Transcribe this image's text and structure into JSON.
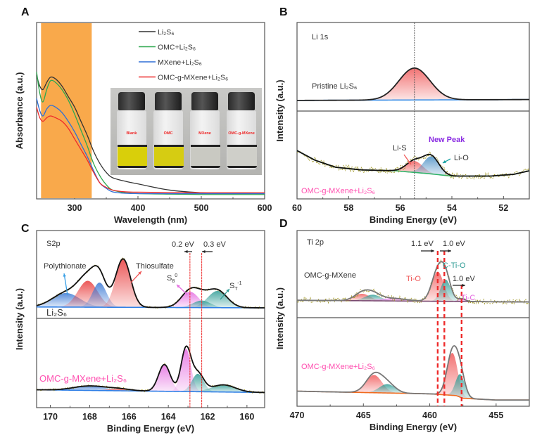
{
  "chart_data": [
    {
      "panel": "A",
      "type": "line",
      "xlabel": "Wavelength (nm)",
      "ylabel": "Absorbance (a.u.)",
      "xlim": [
        240,
        600
      ],
      "ylim": [
        0,
        1
      ],
      "xticks": [
        300,
        400,
        500,
        600
      ],
      "highlight_band": {
        "from": 247,
        "to": 327,
        "color": "#f9a94b"
      },
      "series": [
        {
          "name": "Li₂S₆",
          "color": "#333333",
          "x": [
            240,
            245,
            250,
            256,
            262,
            270,
            280,
            290,
            300,
            310,
            320,
            330,
            340,
            350,
            360,
            380,
            400,
            450,
            500,
            550,
            600
          ],
          "y": [
            0.7,
            0.64,
            0.62,
            0.66,
            0.69,
            0.68,
            0.64,
            0.58,
            0.52,
            0.44,
            0.36,
            0.27,
            0.2,
            0.15,
            0.12,
            0.1,
            0.085,
            0.05,
            0.035,
            0.032,
            0.03
          ]
        },
        {
          "name": "OMC+Li₂S₆",
          "color": "#2ea84f",
          "x": [
            240,
            245,
            250,
            256,
            262,
            270,
            280,
            290,
            300,
            310,
            320,
            330,
            340,
            350,
            360,
            380,
            400,
            450,
            500,
            550,
            600
          ],
          "y": [
            0.72,
            0.6,
            0.55,
            0.62,
            0.67,
            0.66,
            0.62,
            0.56,
            0.48,
            0.39,
            0.3,
            0.2,
            0.13,
            0.08,
            0.05,
            0.035,
            0.03,
            0.027,
            0.025,
            0.025,
            0.025
          ]
        },
        {
          "name": "MXene+Li₂S₆",
          "color": "#2f6fd6",
          "x": [
            240,
            245,
            250,
            256,
            262,
            270,
            280,
            290,
            300,
            310,
            320,
            330,
            340,
            350,
            360,
            380,
            400,
            450,
            500,
            550,
            600
          ],
          "y": [
            0.57,
            0.5,
            0.47,
            0.51,
            0.53,
            0.52,
            0.49,
            0.44,
            0.38,
            0.31,
            0.24,
            0.16,
            0.09,
            0.06,
            0.04,
            0.032,
            0.03,
            0.03,
            0.03,
            0.03,
            0.03
          ]
        },
        {
          "name": "OMC-g-MXene+Li₂S₆",
          "color": "#ee2b2b",
          "x": [
            240,
            245,
            250,
            256,
            262,
            270,
            280,
            290,
            300,
            310,
            320,
            330,
            340,
            350,
            360,
            380,
            400,
            450,
            500,
            550,
            600
          ],
          "y": [
            0.52,
            0.46,
            0.44,
            0.46,
            0.47,
            0.46,
            0.44,
            0.4,
            0.34,
            0.28,
            0.22,
            0.15,
            0.09,
            0.065,
            0.05,
            0.04,
            0.038,
            0.036,
            0.035,
            0.035,
            0.035
          ]
        }
      ],
      "legend": "top-right",
      "inset_photo": {
        "vials": [
          {
            "label": "Blank",
            "liquid_color": "#d9cf0a"
          },
          {
            "label": "OMC",
            "liquid_color": "#d6cc12"
          },
          {
            "label": "MXene",
            "liquid_color": "#c9c9c2"
          },
          {
            "label": "OMC-g-MXene",
            "liquid_color": "#cfcfc9"
          }
        ]
      }
    },
    {
      "panel": "B",
      "type": "line",
      "xlabel": "Binding Energy (eV)",
      "ylabel": "Intensity (a.u.)",
      "xlim": [
        60,
        51
      ],
      "xticks": [
        60,
        58,
        56,
        54,
        52
      ],
      "reference_line": 55.45,
      "subplots": [
        {
          "label": "Pristine Li₂S₆",
          "background": [
            [
              60,
              0.12
            ],
            [
              51,
              0.13
            ]
          ],
          "raw_data": false,
          "envelope_color": "#222222",
          "peaks": [
            {
              "center": 55.45,
              "amplitude": 0.36,
              "sigma": 0.6,
              "color": "#f05a5a"
            }
          ]
        },
        {
          "label": "OMC-g-MXene+Li₂S₆",
          "background": [
            [
              60,
              0.55
            ],
            [
              59.3,
              0.44
            ],
            [
              58.5,
              0.36
            ],
            [
              57.5,
              0.33
            ],
            [
              56.2,
              0.32
            ],
            [
              55,
              0.29
            ],
            [
              54,
              0.26
            ],
            [
              52.5,
              0.26
            ],
            [
              51.6,
              0.28
            ],
            [
              51,
              0.32
            ]
          ],
          "raw_data": true,
          "envelope_color": "#111111",
          "peaks": [
            {
              "center": 55.45,
              "amplitude": 0.13,
              "sigma": 0.32,
              "color": "#f05a5a"
            },
            {
              "center": 54.8,
              "amplitude": 0.2,
              "sigma": 0.3,
              "color": "#4a8fc4"
            }
          ]
        }
      ],
      "annotations": {
        "core_level": "Li 1s",
        "li_s": "Li-S",
        "new_peak": "New Peak",
        "li_o": "Li-O"
      }
    },
    {
      "panel": "C",
      "type": "line",
      "xlabel": "Binding Energy (eV)",
      "ylabel": "Intensity (a.u.)",
      "xlim": [
        170.7,
        159.1
      ],
      "xticks": [
        170,
        168,
        166,
        164,
        162,
        160
      ],
      "reference_lines": [
        162.9,
        162.3
      ],
      "subplots": [
        {
          "label": "Li₂S₆",
          "background": [
            [
              170.7,
              0.13
            ],
            [
              159.1,
              0.12
            ]
          ],
          "raw_data": true,
          "envelope_color": "#111111",
          "peaks": [
            {
              "center": 169.2,
              "amplitude": 0.16,
              "sigma": 0.7,
              "color": "#3a78d4"
            },
            {
              "center": 168.1,
              "amplitude": 0.3,
              "sigma": 0.5,
              "color": "#e83b3b"
            },
            {
              "center": 167.5,
              "amplitude": 0.28,
              "sigma": 0.35,
              "color": "#3a78d4"
            },
            {
              "center": 166.3,
              "amplitude": 0.55,
              "sigma": 0.38,
              "color": "#e83b3b"
            },
            {
              "center": 162.9,
              "amplitude": 0.18,
              "sigma": 0.45,
              "color": "#e46be0"
            },
            {
              "center": 162.3,
              "amplitude": 0.08,
              "sigma": 0.45,
              "color": "#2f9c95"
            },
            {
              "center": 161.5,
              "amplitude": 0.19,
              "sigma": 0.5,
              "color": "#2f9c95"
            }
          ]
        },
        {
          "label": "OMC-g-MXene+Li₂S₆",
          "background": [
            [
              170.7,
              0.2
            ],
            [
              159.1,
              0.17
            ]
          ],
          "raw_data": true,
          "envelope_color": "#111111",
          "peaks": [
            {
              "center": 168.0,
              "amplitude": 0.05,
              "sigma": 0.8,
              "color": "#3a78d4"
            },
            {
              "center": 166.5,
              "amplitude": 0.02,
              "sigma": 0.6,
              "color": "#e83b3b"
            },
            {
              "center": 164.2,
              "amplitude": 0.3,
              "sigma": 0.3,
              "color": "#e46be0"
            },
            {
              "center": 163.1,
              "amplitude": 0.48,
              "sigma": 0.25,
              "color": "#e46be0"
            },
            {
              "center": 162.5,
              "amplitude": 0.2,
              "sigma": 0.3,
              "color": "#2f9c95"
            },
            {
              "center": 161.2,
              "amplitude": 0.08,
              "sigma": 0.6,
              "color": "#2f9c95"
            }
          ]
        }
      ],
      "annotations": {
        "core_level": "S2p",
        "polythionate": "Polythionate",
        "thiosulfate": "Thiosulfate",
        "shift_1": "0.2 eV",
        "shift_2": "0.3 eV",
        "s8": {
          "text": "S",
          "sub": "8",
          "sup": "0"
        },
        "st": {
          "text": "S",
          "sub": "T",
          "sup": "-1"
        }
      }
    },
    {
      "panel": "D",
      "type": "line",
      "xlabel": "Binding Energy (eV)",
      "ylabel": "Intensity (a.u.)",
      "xlim": [
        470,
        452.5
      ],
      "xticks": [
        470,
        465,
        460,
        455
      ],
      "reference_lines": [
        459.4,
        458.9,
        457.6
      ],
      "subplots": [
        {
          "label": "OMC-g-MXene",
          "background": [
            [
              470,
              0.2
            ],
            [
              452.5,
              0.18
            ]
          ],
          "raw_data": true,
          "envelope_color": "#777777",
          "peaks": [
            {
              "center": 465.1,
              "amplitude": 0.08,
              "sigma": 0.6,
              "color": "#f05a5a"
            },
            {
              "center": 464.3,
              "amplitude": 0.07,
              "sigma": 0.6,
              "color": "#2f9c95"
            },
            {
              "center": 462.8,
              "amplitude": 0.03,
              "sigma": 1.0,
              "color": "#e46be0"
            },
            {
              "center": 459.4,
              "amplitude": 0.34,
              "sigma": 0.45,
              "color": "#f05a5a"
            },
            {
              "center": 458.8,
              "amplitude": 0.25,
              "sigma": 0.38,
              "color": "#2f9c95"
            },
            {
              "center": 457.6,
              "amplitude": 0.03,
              "sigma": 0.3,
              "color": "#e46be0"
            }
          ]
        },
        {
          "label": "OMC-g-MXene+Li₂S₆",
          "background": [
            [
              470,
              0.17
            ],
            [
              460,
              0.14
            ],
            [
              458,
              0.12
            ],
            [
              457.5,
              0.09
            ],
            [
              455,
              0.07
            ],
            [
              452.5,
              0.07
            ]
          ],
          "raw_data": false,
          "envelope_color": "#777777",
          "peaks": [
            {
              "center": 464.2,
              "amplitude": 0.2,
              "sigma": 0.6,
              "color": "#f05a5a"
            },
            {
              "center": 463.2,
              "amplitude": 0.1,
              "sigma": 0.6,
              "color": "#2f9c95"
            },
            {
              "center": 458.3,
              "amplitude": 0.48,
              "sigma": 0.4,
              "color": "#f05a5a"
            },
            {
              "center": 457.7,
              "amplitude": 0.26,
              "sigma": 0.35,
              "color": "#2f9c95"
            }
          ]
        }
      ],
      "annotations": {
        "core_level": "Ti 2p",
        "shift_1": "1.1 eV",
        "shift_2": "1.0 eV",
        "c_ti_o": "C-Ti-O",
        "ti_o": "Ti-O",
        "shift_3": "1.0 eV",
        "ti_c": "Ti-C"
      }
    }
  ],
  "colors": {
    "pink_label": "#ff4fb0",
    "new_peak": "#8a2be2",
    "raw_data": "#a39a2a",
    "reference_red": "#ee2b2b"
  }
}
